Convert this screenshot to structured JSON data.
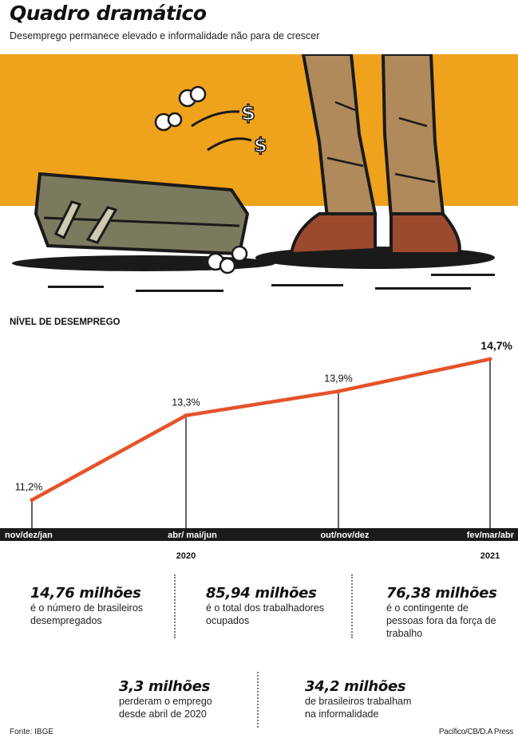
{
  "header": {
    "title": "Quadro dramático",
    "subtitle": "Desemprego permanece elevado e informalidade não para de crescer"
  },
  "colors": {
    "accent_orange": "#EFA21B",
    "line_red": "#E5532A",
    "axis_band": "#1a1a1a"
  },
  "illustration": {
    "icons": [
      "suitcase-icon",
      "legs-icon",
      "shoe-icon",
      "dollar-sign-icon",
      "smoke-puff-icon"
    ]
  },
  "chart_section_label": "NÍVEL DE DESEMPREGO",
  "chart_data": {
    "type": "line",
    "categories": [
      "nov/dez/jan",
      "abr/ mai/jun",
      "out/nov/dez",
      "fev/mar/abr"
    ],
    "values": [
      11.2,
      13.3,
      13.9,
      14.7
    ],
    "value_labels": [
      "11,2%",
      "13,3%",
      "13,9%",
      "14,7%"
    ],
    "year_labels": [
      "2020",
      "2021"
    ],
    "title": "NÍVEL DE DESEMPREGO",
    "ylim": [
      10.5,
      14.9
    ],
    "grid": false,
    "legend": "none"
  },
  "stats": [
    {
      "value": "14,76 milhões",
      "desc": "é o número de brasileiros desempregados"
    },
    {
      "value": "85,94 milhões",
      "desc": "é o total dos trabalhadores ocupados"
    },
    {
      "value": "76,38 milhões",
      "desc": "é o contingente de pessoas fora da força de trabalho"
    },
    {
      "value": "3,3 milhões",
      "desc": "perderam o emprego desde abril de 2020"
    },
    {
      "value": "34,2 milhões",
      "desc": "de brasileiros trabalham na informalidade"
    }
  ],
  "footer": {
    "source": "Fonte: IBGE",
    "credit": "Pacífico/CB/D.A Press"
  }
}
